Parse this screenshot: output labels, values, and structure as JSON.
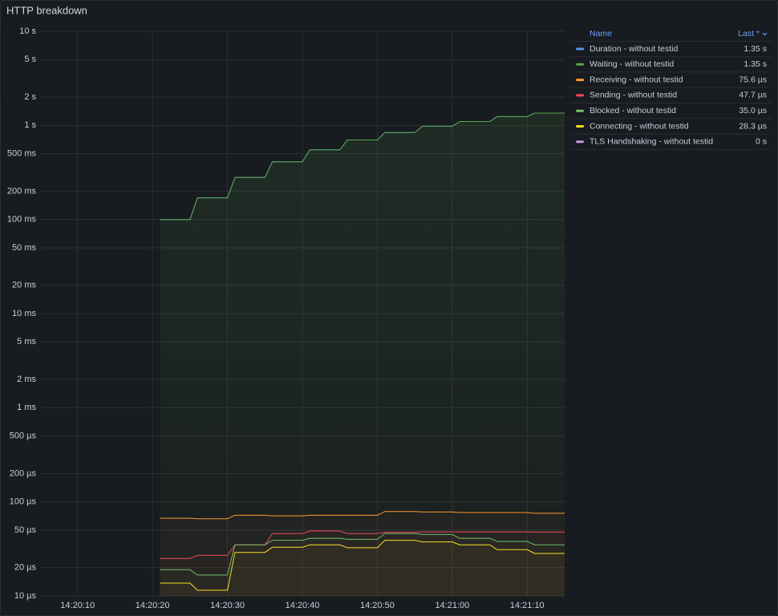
{
  "chart_data": {
    "type": "line",
    "title": "HTTP breakdown",
    "log_scale": true,
    "grid": true,
    "legend_position": "right",
    "legend_header": {
      "name": "Name",
      "value": "Last *"
    },
    "x": [
      "14:20:21",
      "14:20:25",
      "14:20:26",
      "14:20:30",
      "14:20:31",
      "14:20:35",
      "14:20:36",
      "14:20:40",
      "14:20:41",
      "14:20:45",
      "14:20:46",
      "14:20:50",
      "14:20:51",
      "14:20:55",
      "14:20:56",
      "14:21:00",
      "14:21:01",
      "14:21:05",
      "14:21:06",
      "14:21:10",
      "14:21:11",
      "14:21:15"
    ],
    "xlim": [
      "14:20:05",
      "14:21:15"
    ],
    "xticks": [
      "14:20:10",
      "14:20:20",
      "14:20:30",
      "14:20:40",
      "14:20:50",
      "14:21:00",
      "14:21:10"
    ],
    "ylim": [
      1e-05,
      10
    ],
    "yticks": [
      {
        "value": 10,
        "label": "10 s"
      },
      {
        "value": 5,
        "label": "5 s"
      },
      {
        "value": 2,
        "label": "2 s"
      },
      {
        "value": 1,
        "label": "1 s"
      },
      {
        "value": 0.5,
        "label": "500 ms"
      },
      {
        "value": 0.2,
        "label": "200 ms"
      },
      {
        "value": 0.1,
        "label": "100 ms"
      },
      {
        "value": 0.05,
        "label": "50 ms"
      },
      {
        "value": 0.02,
        "label": "20 ms"
      },
      {
        "value": 0.01,
        "label": "10 ms"
      },
      {
        "value": 0.005,
        "label": "5 ms"
      },
      {
        "value": 0.002,
        "label": "2 ms"
      },
      {
        "value": 0.001,
        "label": "1 ms"
      },
      {
        "value": 0.0005,
        "label": "500 µs"
      },
      {
        "value": 0.0002,
        "label": "200 µs"
      },
      {
        "value": 0.0001,
        "label": "100 µs"
      },
      {
        "value": 5e-05,
        "label": "50 µs"
      },
      {
        "value": 2e-05,
        "label": "20 µs"
      },
      {
        "value": 1e-05,
        "label": "10 µs"
      }
    ],
    "series": [
      {
        "name": "Duration - without testid",
        "color": "#5794f2",
        "last": 1.35,
        "last_label": "1.35 s",
        "values": [
          0.1,
          0.1,
          0.17,
          0.17,
          0.28,
          0.28,
          0.41,
          0.41,
          0.55,
          0.55,
          0.7,
          0.7,
          0.84,
          0.84,
          0.98,
          0.98,
          1.1,
          1.1,
          1.24,
          1.24,
          1.35,
          1.35
        ]
      },
      {
        "name": "Waiting - without testid",
        "color": "#56a64b",
        "last": 1.35,
        "last_label": "1.35 s",
        "values": [
          0.1,
          0.1,
          0.17,
          0.17,
          0.28,
          0.28,
          0.41,
          0.41,
          0.55,
          0.55,
          0.7,
          0.7,
          0.84,
          0.84,
          0.98,
          0.98,
          1.1,
          1.1,
          1.24,
          1.24,
          1.35,
          1.35
        ]
      },
      {
        "name": "Receiving - without testid",
        "color": "#ff9830",
        "last": 7.56e-05,
        "last_label": "75.6 µs",
        "values": [
          6.7e-05,
          6.7e-05,
          6.6e-05,
          6.6e-05,
          7.2e-05,
          7.2e-05,
          7.1e-05,
          7.1e-05,
          7.2e-05,
          7.2e-05,
          7.2e-05,
          7.2e-05,
          7.9e-05,
          7.9e-05,
          7.8e-05,
          7.8e-05,
          7.7e-05,
          7.7e-05,
          7.7e-05,
          7.7e-05,
          7.56e-05,
          7.56e-05
        ]
      },
      {
        "name": "Sending - without testid",
        "color": "#f2495c",
        "last": 4.77e-05,
        "last_label": "47.7 µs",
        "values": [
          2.5e-05,
          2.5e-05,
          2.7e-05,
          2.7e-05,
          3.5e-05,
          3.5e-05,
          4.6e-05,
          4.6e-05,
          4.9e-05,
          4.9e-05,
          4.6e-05,
          4.6e-05,
          4.75e-05,
          4.75e-05,
          4.8e-05,
          4.8e-05,
          4.8e-05,
          4.8e-05,
          4.8e-05,
          4.8e-05,
          4.77e-05,
          4.77e-05
        ]
      },
      {
        "name": "Blocked - without testid",
        "color": "#73bf69",
        "last": 3.5e-05,
        "last_label": "35.0 µs",
        "values": [
          1.9e-05,
          1.9e-05,
          1.67e-05,
          1.67e-05,
          3.5e-05,
          3.5e-05,
          3.9e-05,
          3.9e-05,
          4.1e-05,
          4.1e-05,
          4e-05,
          4e-05,
          4.6e-05,
          4.6e-05,
          4.5e-05,
          4.5e-05,
          4.1e-05,
          4.1e-05,
          3.8e-05,
          3.8e-05,
          3.5e-05,
          3.5e-05
        ]
      },
      {
        "name": "Connecting - without testid",
        "color": "#fade2a",
        "last": 2.83e-05,
        "last_label": "28.3 µs",
        "values": [
          1.37e-05,
          1.37e-05,
          1.15e-05,
          1.15e-05,
          2.9e-05,
          2.9e-05,
          3.3e-05,
          3.3e-05,
          3.5e-05,
          3.5e-05,
          3.25e-05,
          3.25e-05,
          3.9e-05,
          3.9e-05,
          3.75e-05,
          3.75e-05,
          3.5e-05,
          3.5e-05,
          3.1e-05,
          3.1e-05,
          2.83e-05,
          2.83e-05
        ]
      },
      {
        "name": "TLS Handshaking - without testid",
        "color": "#ca95e5",
        "last": 0,
        "last_label": "0 s"
      }
    ]
  }
}
